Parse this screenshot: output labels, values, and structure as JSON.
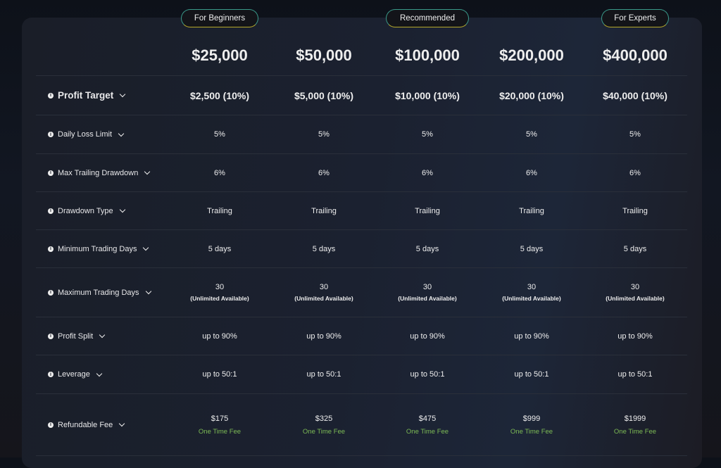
{
  "badges": [
    {
      "label": "For Beginners",
      "col": 0
    },
    {
      "label": "Recommended",
      "col": 2
    },
    {
      "label": "For Experts",
      "col": 4
    }
  ],
  "plans": [
    "$25,000",
    "$50,000",
    "$100,000",
    "$200,000",
    "$400,000"
  ],
  "rows": [
    {
      "label": "Profit Target",
      "values": [
        "$2,500 (10%)",
        "$5,000 (10%)",
        "$10,000 (10%)",
        "$20,000 (10%)",
        "$40,000 (10%)"
      ]
    },
    {
      "label": "Daily Loss Limit",
      "values": [
        "5%",
        "5%",
        "5%",
        "5%",
        "5%"
      ]
    },
    {
      "label": "Max Trailing Drawdown",
      "values": [
        "6%",
        "6%",
        "6%",
        "6%",
        "6%"
      ]
    },
    {
      "label": "Drawdown Type",
      "values": [
        "Trailing",
        "Trailing",
        "Trailing",
        "Trailing",
        "Trailing"
      ]
    },
    {
      "label": "Minimum Trading Days",
      "values": [
        "5 days",
        "5 days",
        "5 days",
        "5 days",
        "5 days"
      ]
    },
    {
      "label": "Maximum Trading Days",
      "values": [
        "30",
        "30",
        "30",
        "30",
        "30"
      ],
      "sub": "(Unlimited Available)"
    },
    {
      "label": "Profit Split",
      "values": [
        "up to 90%",
        "up to 90%",
        "up to 90%",
        "up to 90%",
        "up to 90%"
      ]
    },
    {
      "label": "Leverage",
      "values": [
        "up to 50:1",
        "up to 50:1",
        "up to 50:1",
        "up to 50:1",
        "up to 50:1"
      ]
    },
    {
      "label": "Refundable Fee",
      "values": [
        "$175",
        "$325",
        "$475",
        "$999",
        "$1999"
      ],
      "note": "One Time Fee"
    }
  ],
  "colors": {
    "accent_green": "#7dbb55"
  }
}
